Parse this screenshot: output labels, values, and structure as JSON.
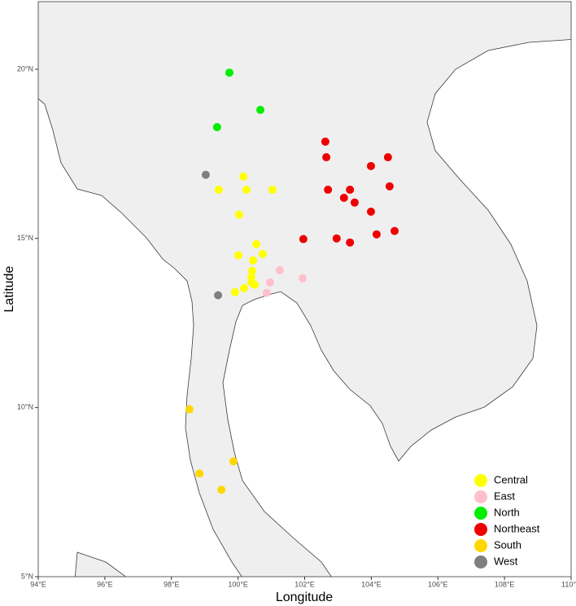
{
  "chart_data": {
    "type": "scatter",
    "x_label": "Longitude",
    "y_label": "Latitude",
    "xlim": [
      94,
      110
    ],
    "ylim": [
      5,
      22
    ],
    "xticks": [
      {
        "value": 94,
        "label": "94°E"
      },
      {
        "value": 96,
        "label": "96°E"
      },
      {
        "value": 98,
        "label": "98°E"
      },
      {
        "value": 100,
        "label": "100°E"
      },
      {
        "value": 102,
        "label": "102°E"
      },
      {
        "value": 104,
        "label": "104°E"
      },
      {
        "value": 106,
        "label": "106°E"
      },
      {
        "value": 108,
        "label": "108°E"
      },
      {
        "value": 110,
        "label": "110°E"
      }
    ],
    "yticks": [
      {
        "value": 5,
        "label": "5°N"
      },
      {
        "value": 10,
        "label": "10°N"
      },
      {
        "value": 15,
        "label": "15°N"
      },
      {
        "value": 20,
        "label": "20°N"
      }
    ],
    "legend_position": "bottom-right",
    "series": [
      {
        "name": "Central",
        "color": "#ffff00",
        "x": [
          100.16,
          99.42,
          100.25,
          101.03,
          100.03,
          100.55,
          100.01,
          100.74,
          100.45,
          100.42,
          100.4,
          100.4,
          100.5,
          100.18,
          99.91
        ],
        "y": [
          16.83,
          16.44,
          16.44,
          16.44,
          15.7,
          14.83,
          14.5,
          14.54,
          14.35,
          14.04,
          13.85,
          13.7,
          13.63,
          13.53,
          13.41
        ]
      },
      {
        "name": "East",
        "color": "#ffc0cb",
        "x": [
          101.25,
          100.96,
          100.86,
          101.94
        ],
        "y": [
          14.06,
          13.7,
          13.39,
          13.82
        ]
      },
      {
        "name": "North",
        "color": "#00ee00",
        "x": [
          99.74,
          100.67,
          99.37
        ],
        "y": [
          19.9,
          18.8,
          18.29
        ]
      },
      {
        "name": "Northeast",
        "color": "#ee0000",
        "x": [
          102.62,
          102.65,
          104.5,
          103.99,
          104.55,
          102.7,
          103.36,
          103.18,
          103.5,
          103.99,
          101.96,
          102.96,
          103.36,
          104.16,
          104.7
        ],
        "y": [
          17.86,
          17.4,
          17.4,
          17.14,
          16.54,
          16.44,
          16.44,
          16.2,
          16.06,
          15.79,
          14.98,
          15.0,
          14.88,
          15.12,
          15.22
        ]
      },
      {
        "name": "South",
        "color": "#ffd700",
        "x": [
          98.54,
          99.86,
          98.84,
          99.5
        ],
        "y": [
          9.95,
          8.41,
          8.05,
          7.57
        ]
      },
      {
        "name": "West",
        "color": "#7f7f7f",
        "x": [
          99.03,
          99.4
        ],
        "y": [
          16.88,
          13.32
        ]
      }
    ]
  }
}
